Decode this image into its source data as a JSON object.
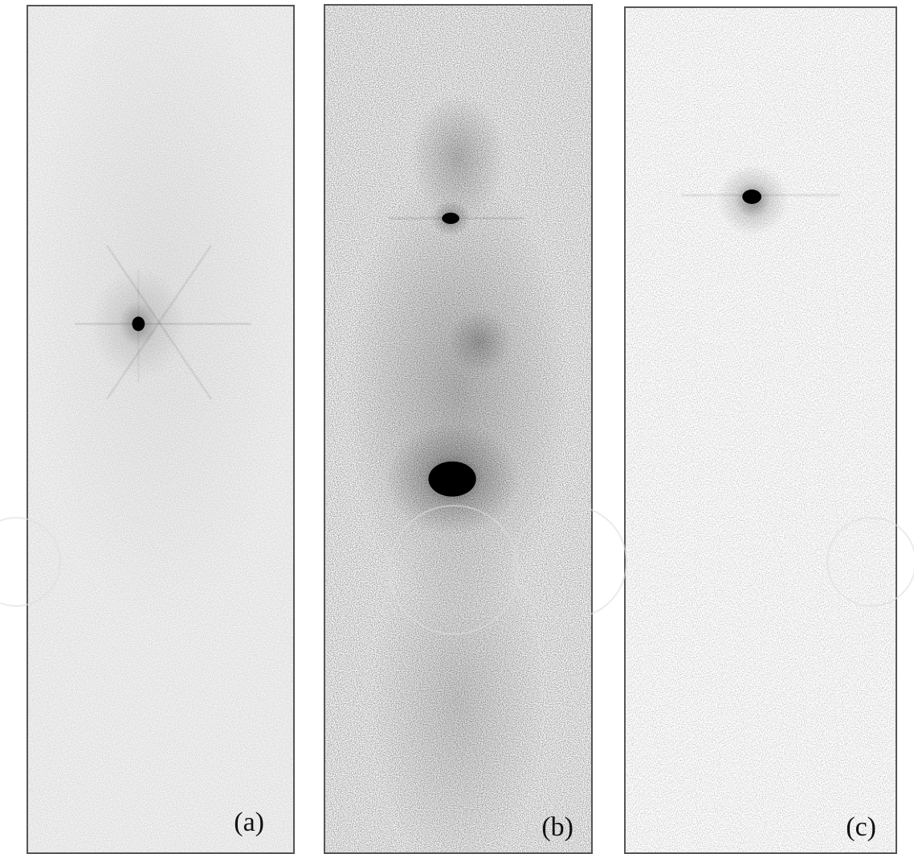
{
  "figure": {
    "panels": [
      {
        "id": "a",
        "label": "(a)"
      },
      {
        "id": "b",
        "label": "(b)"
      },
      {
        "id": "c",
        "label": "(c)"
      }
    ]
  }
}
